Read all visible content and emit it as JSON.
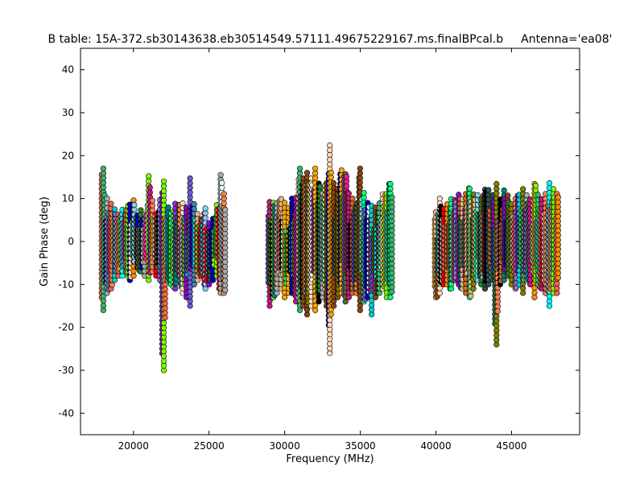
{
  "chart_data": {
    "type": "scatter",
    "title": "B table: 15A-372.sb30143638.eb30514549.57111.49675229167.ms.finalBPcal.b",
    "subtitle": "Antenna='ea08'",
    "xlabel": "Frequency (MHz)",
    "ylabel": "Gain Phase (deg)",
    "xlim": [
      16500,
      49500
    ],
    "ylim": [
      -45,
      45
    ],
    "xticks": [
      20000,
      25000,
      30000,
      35000,
      40000,
      45000
    ],
    "yticks": [
      -40,
      -30,
      -20,
      -10,
      0,
      10,
      20,
      30,
      40
    ],
    "grid": false,
    "legend": "none",
    "palette": [
      "#87ceeb",
      "#a9a9a9",
      "#6a5acd",
      "#008080",
      "#ff0000",
      "#000000",
      "#deb887",
      "#0000cd",
      "#ff8c00",
      "#ffa500",
      "#ff7f50",
      "#d2691e",
      "#c71585",
      "#7cfc00",
      "#00ffff",
      "#556b2f",
      "#9370db",
      "#3cb371",
      "#ffdab9",
      "#2f4f4f",
      "#8b4513",
      "#00ff7f",
      "#ff1493",
      "#9400d3",
      "#f5deb3",
      "#4682b4",
      "#808000",
      "#e0ffff",
      "#00ced1",
      "#ff6347",
      "#228b22",
      "#8a2be2"
    ],
    "columns_note": "each column: [frequency MHz, min phase deg, max phase deg]",
    "columns": [
      [
        18000,
        -16,
        18
      ],
      [
        18250,
        -12,
        10
      ],
      [
        18500,
        -11,
        9
      ],
      [
        18750,
        -9,
        8
      ],
      [
        19000,
        -8,
        7
      ],
      [
        19250,
        -8,
        8
      ],
      [
        19500,
        -7,
        8
      ],
      [
        19750,
        -9,
        9
      ],
      [
        20000,
        -8,
        10
      ],
      [
        20250,
        -6,
        7
      ],
      [
        20500,
        -7,
        8
      ],
      [
        20750,
        -8,
        7
      ],
      [
        21000,
        -9,
        16
      ],
      [
        21250,
        -7,
        10
      ],
      [
        21500,
        -8,
        7
      ],
      [
        21750,
        -9,
        10
      ],
      [
        22000,
        -30,
        15
      ],
      [
        22250,
        -9,
        8
      ],
      [
        22500,
        -10,
        7
      ],
      [
        22750,
        -11,
        9
      ],
      [
        23000,
        -8,
        9
      ],
      [
        23250,
        -12,
        9
      ],
      [
        23500,
        -13,
        8
      ],
      [
        23750,
        -15,
        15
      ],
      [
        24000,
        -10,
        9
      ],
      [
        24250,
        -9,
        7
      ],
      [
        24500,
        -8,
        6
      ],
      [
        24750,
        -11,
        8
      ],
      [
        25000,
        -10,
        5
      ],
      [
        25250,
        -9,
        6
      ],
      [
        25500,
        -8,
        9
      ],
      [
        25750,
        -12,
        16
      ],
      [
        26000,
        -12,
        12
      ],
      [
        29000,
        -15,
        10
      ],
      [
        29250,
        -13,
        10
      ],
      [
        29500,
        -12,
        9
      ],
      [
        29750,
        -11,
        10
      ],
      [
        30000,
        -13,
        9
      ],
      [
        30250,
        -12,
        8
      ],
      [
        30500,
        -12,
        10
      ],
      [
        30750,
        -14,
        11
      ],
      [
        31000,
        -16,
        17
      ],
      [
        31250,
        -15,
        15
      ],
      [
        31500,
        -17,
        17
      ],
      [
        31750,
        -15,
        15
      ],
      [
        32000,
        -16,
        18
      ],
      [
        32250,
        -14,
        14
      ],
      [
        32500,
        -13,
        12
      ],
      [
        32750,
        -15,
        14
      ],
      [
        33000,
        -26,
        23
      ],
      [
        33250,
        -15,
        14
      ],
      [
        33500,
        -13,
        13
      ],
      [
        33750,
        -12,
        17
      ],
      [
        34000,
        -14,
        16
      ],
      [
        34250,
        -13,
        12
      ],
      [
        34500,
        -12,
        11
      ],
      [
        34750,
        -12,
        9
      ],
      [
        35000,
        -16,
        18
      ],
      [
        35250,
        -14,
        12
      ],
      [
        35500,
        -13,
        10
      ],
      [
        35750,
        -17,
        9
      ],
      [
        36000,
        -13,
        8
      ],
      [
        36250,
        -12,
        9
      ],
      [
        36500,
        -11,
        11
      ],
      [
        36750,
        -13,
        12
      ],
      [
        37000,
        -13,
        14
      ],
      [
        40000,
        -13,
        7
      ],
      [
        40250,
        -12,
        11
      ],
      [
        40500,
        -10,
        8
      ],
      [
        40750,
        -10,
        9
      ],
      [
        41000,
        -11,
        10
      ],
      [
        41250,
        -9,
        10
      ],
      [
        41500,
        -10,
        11
      ],
      [
        41750,
        -11,
        10
      ],
      [
        42000,
        -12,
        12
      ],
      [
        42250,
        -13,
        13
      ],
      [
        42500,
        -11,
        11
      ],
      [
        42750,
        -9,
        11
      ],
      [
        43000,
        -10,
        10
      ],
      [
        43250,
        -11,
        13
      ],
      [
        43500,
        -10,
        12
      ],
      [
        43750,
        -9,
        11
      ],
      [
        44000,
        -24,
        14
      ],
      [
        44250,
        -10,
        10
      ],
      [
        44500,
        -9,
        12
      ],
      [
        44750,
        -8,
        11
      ],
      [
        45000,
        -10,
        9
      ],
      [
        45250,
        -11,
        10
      ],
      [
        45500,
        -10,
        11
      ],
      [
        45750,
        -12,
        13
      ],
      [
        46000,
        -9,
        11
      ],
      [
        46250,
        -10,
        10
      ],
      [
        46500,
        -13,
        14
      ],
      [
        46750,
        -10,
        11
      ],
      [
        47000,
        -11,
        10
      ],
      [
        47250,
        -12,
        12
      ],
      [
        47500,
        -15,
        14
      ],
      [
        47750,
        -12,
        13
      ],
      [
        48000,
        -12,
        12
      ]
    ]
  }
}
